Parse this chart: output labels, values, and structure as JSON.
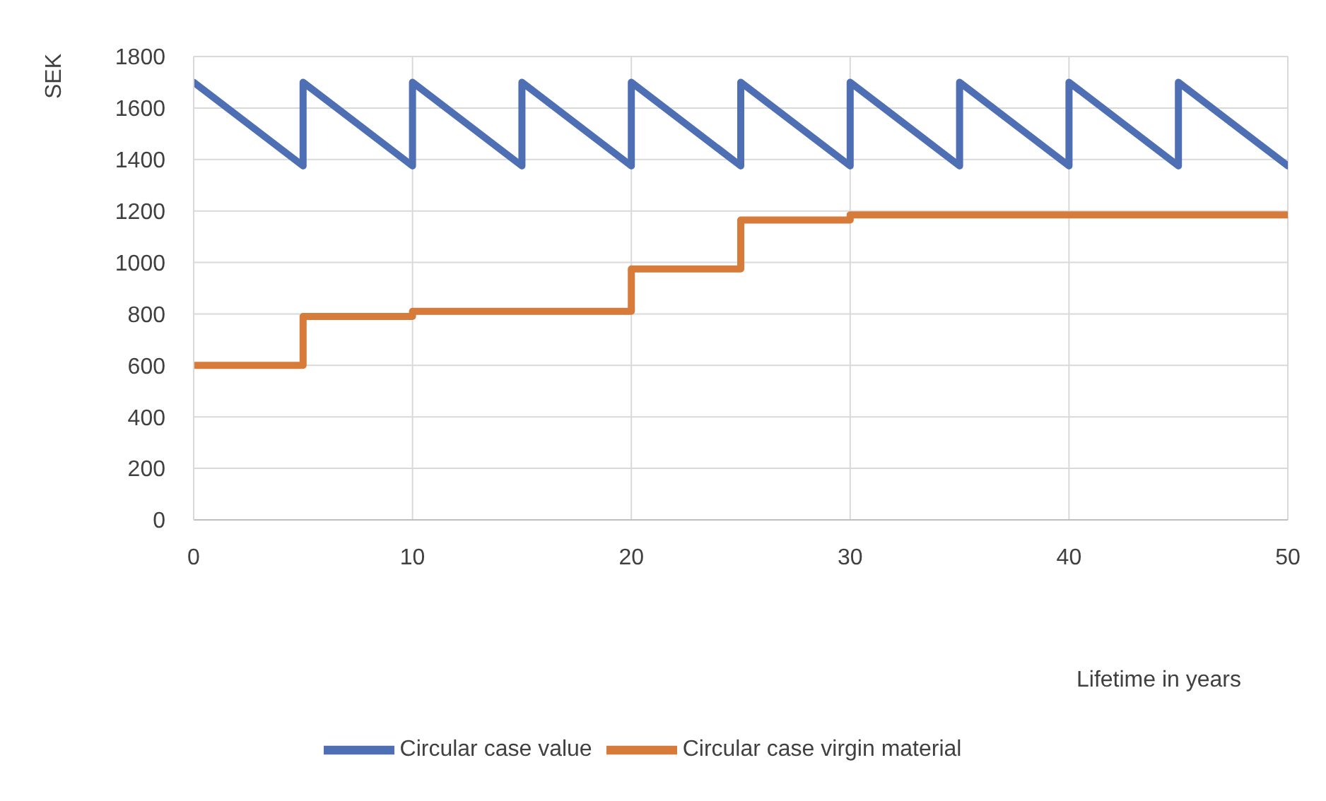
{
  "chart_data": {
    "type": "line",
    "xlabel": "Lifetime in years",
    "ylabel": "SEK",
    "series": [
      {
        "name": "Circular case value",
        "color": "#4f6fb4",
        "x": [
          0,
          5,
          5,
          10,
          10,
          15,
          15,
          20,
          20,
          25,
          25,
          30,
          30,
          35,
          35,
          40,
          40,
          45,
          45,
          50
        ],
        "values": [
          1700,
          1375,
          1700,
          1375,
          1700,
          1375,
          1700,
          1375,
          1700,
          1375,
          1700,
          1375,
          1700,
          1375,
          1700,
          1375,
          1700,
          1375,
          1700,
          1375
        ]
      },
      {
        "name": "Circular case virgin material",
        "color": "#d67b3a",
        "type": "step",
        "x": [
          0,
          5,
          10,
          15,
          20,
          25,
          30,
          35,
          40,
          45,
          50
        ],
        "values": [
          600,
          790,
          810,
          810,
          975,
          1165,
          1185,
          1185,
          1185,
          1185,
          1185
        ]
      }
    ],
    "xlim": [
      0,
      50
    ],
    "xticks": [
      0,
      10,
      20,
      30,
      40,
      50
    ],
    "ylim": [
      0,
      1800
    ],
    "yticks": [
      0,
      200,
      400,
      600,
      800,
      1000,
      1200,
      1400,
      1600,
      1800
    ],
    "grid": true,
    "legend": "bottom",
    "marker": "none",
    "line_style": "solid"
  }
}
